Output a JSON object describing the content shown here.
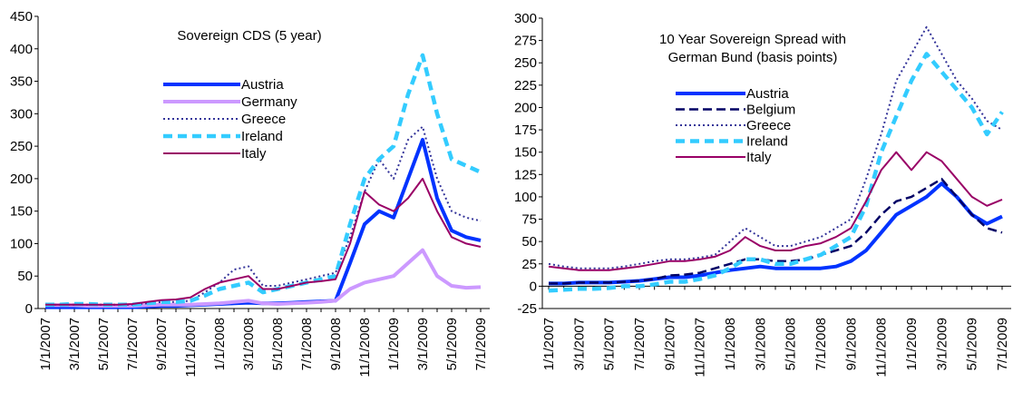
{
  "chart_data": [
    {
      "type": "line",
      "title": [
        "Sovereign CDS (5 year)"
      ],
      "categories": [
        "1/1/2007",
        null,
        "3/1/2007",
        null,
        "5/1/2007",
        null,
        "7/1/2007",
        null,
        "9/1/2007",
        null,
        "11/1/2007",
        null,
        "1/1/2008",
        null,
        "3/1/2008",
        null,
        "5/1/2008",
        null,
        "7/1/2008",
        null,
        "9/1/2008",
        null,
        "11/1/2008",
        null,
        "1/1/2009",
        null,
        "3/1/2009",
        null,
        "5/1/2009",
        null,
        "7/1/2009"
      ],
      "ylim": [
        0,
        450
      ],
      "yticks": [
        0,
        50,
        100,
        150,
        200,
        250,
        300,
        350,
        400,
        450
      ],
      "series": [
        {
          "name": "Austria",
          "color": "#0033ff",
          "line_style": "thick",
          "values": [
            2,
            2,
            2,
            2,
            2,
            2,
            2,
            3,
            4,
            4,
            5,
            6,
            7,
            8,
            9,
            8,
            8,
            9,
            10,
            11,
            12,
            70,
            130,
            150,
            140,
            200,
            260,
            170,
            120,
            110,
            105
          ]
        },
        {
          "name": "Germany",
          "color": "#cc99ff",
          "line_style": "thick",
          "values": [
            5,
            5,
            5,
            4,
            4,
            4,
            4,
            5,
            6,
            6,
            6,
            7,
            8,
            10,
            12,
            8,
            7,
            8,
            9,
            10,
            12,
            30,
            40,
            45,
            50,
            70,
            90,
            50,
            35,
            32,
            33
          ]
        },
        {
          "name": "Greece",
          "color": "#333399",
          "line_style": "dotted",
          "values": [
            6,
            6,
            6,
            6,
            6,
            6,
            6,
            8,
            10,
            10,
            12,
            25,
            40,
            60,
            65,
            35,
            35,
            40,
            45,
            50,
            55,
            110,
            180,
            230,
            200,
            260,
            280,
            200,
            150,
            140,
            135
          ]
        },
        {
          "name": "Ireland",
          "color": "#33ccff",
          "line_style": "thick-dashed",
          "values": [
            6,
            6,
            7,
            7,
            6,
            6,
            6,
            8,
            10,
            10,
            12,
            20,
            30,
            35,
            40,
            25,
            30,
            35,
            40,
            45,
            50,
            130,
            200,
            230,
            250,
            330,
            390,
            300,
            230,
            220,
            210
          ]
        },
        {
          "name": "Italy",
          "color": "#990066",
          "line_style": "solid",
          "values": [
            6,
            6,
            6,
            6,
            6,
            6,
            7,
            10,
            13,
            14,
            17,
            30,
            40,
            45,
            50,
            30,
            30,
            35,
            40,
            42,
            45,
            100,
            180,
            160,
            150,
            170,
            200,
            150,
            110,
            100,
            95
          ]
        }
      ]
    },
    {
      "type": "line",
      "title": [
        "10 Year Sovereign Spread with",
        "German Bund  (basis points)"
      ],
      "categories": [
        "1/1/2007",
        null,
        "3/1/2007",
        null,
        "5/1/2007",
        null,
        "7/1/2007",
        null,
        "9/1/2007",
        null,
        "11/1/2007",
        null,
        "1/1/2008",
        null,
        "3/1/2008",
        null,
        "5/1/2008",
        null,
        "7/1/2008",
        null,
        "9/1/2008",
        null,
        "11/1/2008",
        null,
        "1/1/2009",
        null,
        "3/1/2009",
        null,
        "5/1/2009",
        null,
        "7/1/2009"
      ],
      "ylim": [
        -25,
        300
      ],
      "yticks": [
        -25,
        0,
        25,
        50,
        75,
        100,
        125,
        150,
        175,
        200,
        225,
        250,
        275,
        300
      ],
      "series": [
        {
          "name": "Austria",
          "color": "#0033ff",
          "line_style": "thick",
          "values": [
            3,
            3,
            4,
            4,
            4,
            5,
            6,
            8,
            10,
            10,
            12,
            15,
            18,
            20,
            22,
            20,
            20,
            20,
            20,
            22,
            28,
            40,
            60,
            80,
            90,
            100,
            115,
            100,
            80,
            70,
            78
          ]
        },
        {
          "name": "Belgium",
          "color": "#000066",
          "line_style": "dashed",
          "values": [
            3,
            3,
            4,
            4,
            4,
            5,
            6,
            8,
            12,
            13,
            15,
            20,
            25,
            30,
            30,
            28,
            28,
            30,
            35,
            40,
            45,
            60,
            80,
            95,
            100,
            110,
            120,
            100,
            80,
            65,
            60
          ]
        },
        {
          "name": "Greece",
          "color": "#333399",
          "line_style": "dotted",
          "values": [
            25,
            22,
            20,
            20,
            20,
            22,
            25,
            28,
            30,
            30,
            32,
            35,
            50,
            65,
            55,
            45,
            45,
            50,
            55,
            65,
            75,
            120,
            170,
            230,
            260,
            290,
            260,
            230,
            210,
            185,
            175
          ]
        },
        {
          "name": "Ireland",
          "color": "#33ccff",
          "line_style": "thick-dashed",
          "values": [
            -5,
            -4,
            -3,
            -3,
            -2,
            0,
            0,
            2,
            5,
            5,
            8,
            12,
            20,
            30,
            30,
            25,
            25,
            30,
            35,
            45,
            55,
            90,
            150,
            190,
            230,
            260,
            240,
            220,
            200,
            170,
            195
          ]
        },
        {
          "name": "Italy",
          "color": "#990066",
          "line_style": "solid",
          "values": [
            22,
            20,
            18,
            18,
            18,
            20,
            22,
            25,
            28,
            28,
            30,
            33,
            40,
            55,
            45,
            40,
            40,
            45,
            48,
            55,
            65,
            95,
            130,
            150,
            130,
            150,
            140,
            120,
            100,
            90,
            97
          ]
        }
      ]
    }
  ]
}
